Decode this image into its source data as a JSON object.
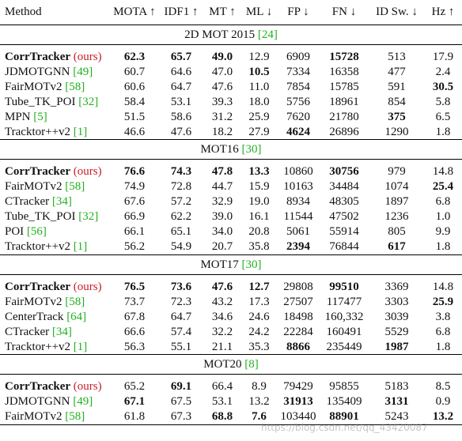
{
  "columns": [
    "Method",
    "MOTA ↑",
    "IDF1 ↑",
    "MT ↑",
    "ML ↓",
    "FP ↓",
    "FN ↓",
    "ID Sw. ↓",
    "Hz ↑"
  ],
  "sections": [
    {
      "title": "2D MOT 2015",
      "ref": "[24]",
      "rows": [
        {
          "method": "CorrTracker",
          "method_bold": true,
          "suffix": "(ours)",
          "values": [
            "62.3",
            "65.7",
            "49.0",
            "12.9",
            "6909",
            "15728",
            "513",
            "17.9"
          ],
          "bold": [
            true,
            true,
            true,
            false,
            false,
            true,
            false,
            false
          ]
        },
        {
          "method": "JDMOTGNN",
          "ref": "[49]",
          "values": [
            "60.7",
            "64.6",
            "47.0",
            "10.5",
            "7334",
            "16358",
            "477",
            "2.4"
          ],
          "bold": [
            false,
            false,
            false,
            true,
            false,
            false,
            false,
            false
          ]
        },
        {
          "method": "FairMOTv2",
          "ref": "[58]",
          "values": [
            "60.6",
            "64.7",
            "47.6",
            "11.0",
            "7854",
            "15785",
            "591",
            "30.5"
          ],
          "bold": [
            false,
            false,
            false,
            false,
            false,
            false,
            false,
            true
          ]
        },
        {
          "method": "Tube_TK_POI",
          "ref": "[32]",
          "values": [
            "58.4",
            "53.1",
            "39.3",
            "18.0",
            "5756",
            "18961",
            "854",
            "5.8"
          ],
          "bold": [
            false,
            false,
            false,
            false,
            false,
            false,
            false,
            false
          ]
        },
        {
          "method": "MPN",
          "ref": "[5]",
          "values": [
            "51.5",
            "58.6",
            "31.2",
            "25.9",
            "7620",
            "21780",
            "375",
            "6.5"
          ],
          "bold": [
            false,
            false,
            false,
            false,
            false,
            false,
            true,
            false
          ]
        },
        {
          "method": "Tracktor++v2",
          "ref": "[1]",
          "values": [
            "46.6",
            "47.6",
            "18.2",
            "27.9",
            "4624",
            "26896",
            "1290",
            "1.8"
          ],
          "bold": [
            false,
            false,
            false,
            false,
            true,
            false,
            false,
            false
          ]
        }
      ]
    },
    {
      "title": "MOT16",
      "ref": "[30]",
      "rows": [
        {
          "method": "CorrTracker",
          "method_bold": true,
          "suffix": "(ours)",
          "values": [
            "76.6",
            "74.3",
            "47.8",
            "13.3",
            "10860",
            "30756",
            "979",
            "14.8"
          ],
          "bold": [
            true,
            true,
            true,
            true,
            false,
            true,
            false,
            false
          ]
        },
        {
          "method": "FairMOTv2",
          "ref": "[58]",
          "values": [
            "74.9",
            "72.8",
            "44.7",
            "15.9",
            "10163",
            "34484",
            "1074",
            "25.4"
          ],
          "bold": [
            false,
            false,
            false,
            false,
            false,
            false,
            false,
            true
          ]
        },
        {
          "method": "CTracker",
          "ref": "[34]",
          "values": [
            "67.6",
            "57.2",
            "32.9",
            "19.0",
            "8934",
            "48305",
            "1897",
            "6.8"
          ],
          "bold": [
            false,
            false,
            false,
            false,
            false,
            false,
            false,
            false
          ]
        },
        {
          "method": "Tube_TK_POI",
          "ref": "[32]",
          "values": [
            "66.9",
            "62.2",
            "39.0",
            "16.1",
            "11544",
            "47502",
            "1236",
            "1.0"
          ],
          "bold": [
            false,
            false,
            false,
            false,
            false,
            false,
            false,
            false
          ]
        },
        {
          "method": "POI",
          "ref": "[56]",
          "values": [
            "66.1",
            "65.1",
            "34.0",
            "20.8",
            "5061",
            "55914",
            "805",
            "9.9"
          ],
          "bold": [
            false,
            false,
            false,
            false,
            false,
            false,
            false,
            false
          ]
        },
        {
          "method": "Tracktor++v2",
          "ref": "[1]",
          "values": [
            "56.2",
            "54.9",
            "20.7",
            "35.8",
            "2394",
            "76844",
            "617",
            "1.8"
          ],
          "bold": [
            false,
            false,
            false,
            false,
            true,
            false,
            true,
            false
          ]
        }
      ]
    },
    {
      "title": "MOT17",
      "ref": "[30]",
      "rows": [
        {
          "method": "CorrTracker",
          "method_bold": true,
          "suffix": "(ours)",
          "values": [
            "76.5",
            "73.6",
            "47.6",
            "12.7",
            "29808",
            "99510",
            "3369",
            "14.8"
          ],
          "bold": [
            true,
            true,
            true,
            true,
            false,
            true,
            false,
            false
          ]
        },
        {
          "method": "FairMOTv2",
          "ref": "[58]",
          "values": [
            "73.7",
            "72.3",
            "43.2",
            "17.3",
            "27507",
            "117477",
            "3303",
            "25.9"
          ],
          "bold": [
            false,
            false,
            false,
            false,
            false,
            false,
            false,
            true
          ]
        },
        {
          "method": "CenterTrack",
          "ref": "[64]",
          "values": [
            "67.8",
            "64.7",
            "34.6",
            "24.6",
            "18498",
            "160,332",
            "3039",
            "3.8"
          ],
          "bold": [
            false,
            false,
            false,
            false,
            false,
            false,
            false,
            false
          ]
        },
        {
          "method": "CTracker",
          "ref": "[34]",
          "values": [
            "66.6",
            "57.4",
            "32.2",
            "24.2",
            "22284",
            "160491",
            "5529",
            "6.8"
          ],
          "bold": [
            false,
            false,
            false,
            false,
            false,
            false,
            false,
            false
          ]
        },
        {
          "method": "Tracktor++v2",
          "ref": "[1]",
          "values": [
            "56.3",
            "55.1",
            "21.1",
            "35.3",
            "8866",
            "235449",
            "1987",
            "1.8"
          ],
          "bold": [
            false,
            false,
            false,
            false,
            true,
            false,
            true,
            false
          ]
        }
      ]
    },
    {
      "title": "MOT20",
      "ref": "[8]",
      "rows": [
        {
          "method": "CorrTracker",
          "method_bold": true,
          "suffix": "(ours)",
          "values": [
            "65.2",
            "69.1",
            "66.4",
            "8.9",
            "79429",
            "95855",
            "5183",
            "8.5"
          ],
          "bold": [
            false,
            true,
            false,
            false,
            false,
            false,
            false,
            false
          ]
        },
        {
          "method": "JDMOTGNN",
          "ref": "[49]",
          "values": [
            "67.1",
            "67.5",
            "53.1",
            "13.2",
            "31913",
            "135409",
            "3131",
            "0.9"
          ],
          "bold": [
            true,
            false,
            false,
            false,
            true,
            false,
            true,
            false
          ]
        },
        {
          "method": "FairMOTv2",
          "ref": "[58]",
          "values": [
            "61.8",
            "67.3",
            "68.8",
            "7.6",
            "103440",
            "88901",
            "5243",
            "13.2"
          ],
          "bold": [
            false,
            false,
            true,
            true,
            false,
            true,
            false,
            true
          ]
        }
      ]
    }
  ],
  "watermark": "https://blog.csdn.net/qq_43420087"
}
